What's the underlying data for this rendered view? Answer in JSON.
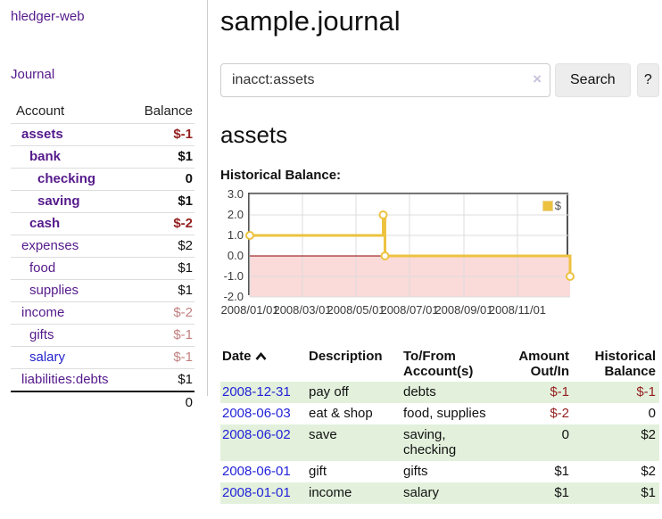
{
  "app": {
    "brand": "hledger-web",
    "nav_journal": "Journal"
  },
  "sidebar": {
    "header": {
      "account": "Account",
      "balance": "Balance"
    },
    "accounts": [
      {
        "name": "assets",
        "balance": "$-1",
        "level": 1,
        "bold": true,
        "balance_style": "neg-strong"
      },
      {
        "name": "bank",
        "balance": "$1",
        "level": 2,
        "bold": true,
        "balance_style": "pos"
      },
      {
        "name": "checking",
        "balance": "0",
        "level": 3,
        "bold": true,
        "balance_style": "pos"
      },
      {
        "name": "saving",
        "balance": "$1",
        "level": 3,
        "bold": true,
        "balance_style": "pos"
      },
      {
        "name": "cash",
        "balance": "$-2",
        "level": 2,
        "bold": true,
        "balance_style": "neg-strong"
      },
      {
        "name": "expenses",
        "balance": "$2",
        "level": 1,
        "bold": false,
        "balance_style": "pos"
      },
      {
        "name": "food",
        "balance": "$1",
        "level": 2,
        "bold": false,
        "balance_style": "pos"
      },
      {
        "name": "supplies",
        "balance": "$1",
        "level": 2,
        "bold": false,
        "balance_style": "pos"
      },
      {
        "name": "income",
        "balance": "$-2",
        "level": 1,
        "bold": false,
        "balance_style": "neg-muted"
      },
      {
        "name": "gifts",
        "balance": "$-1",
        "level": 2,
        "bold": false,
        "balance_style": "neg-muted"
      },
      {
        "name": "salary",
        "balance": "$-1",
        "level": 2,
        "bold": false,
        "balance_style": "neg-muted",
        "link_color": "blue"
      },
      {
        "name": "liabilities:debts",
        "balance": "$1",
        "level": 1,
        "bold": false,
        "balance_style": "pos"
      }
    ],
    "total": "0"
  },
  "header": {
    "title": "sample.journal"
  },
  "search": {
    "value": "inacct:assets",
    "clear_icon": "×",
    "button": "Search",
    "help_button": "?"
  },
  "account_page": {
    "heading": "assets",
    "chart_label": "Historical Balance:"
  },
  "chart_data": {
    "type": "line",
    "title": "Historical Balance",
    "step": true,
    "legend": [
      {
        "label": "$",
        "color": "#edc240"
      }
    ],
    "legend_position": "top-right",
    "grid": true,
    "xlim_dates": [
      "2008-01-01",
      "2008-12-31"
    ],
    "ylim": [
      -2.0,
      3.0
    ],
    "y_ticks": [
      3.0,
      2.0,
      1.0,
      0.0,
      -1.0,
      -2.0
    ],
    "x_ticks": [
      "2008/01/01",
      "2008/03/01",
      "2008/05/01",
      "2008/07/01",
      "2008/09/01",
      "2008/11/01"
    ],
    "points": [
      {
        "date": "2008-01-01",
        "value": 1
      },
      {
        "date": "2008-06-01",
        "value": 2
      },
      {
        "date": "2008-06-03",
        "value": 0
      },
      {
        "date": "2008-12-31",
        "value": -1
      }
    ],
    "series_color": "#edc240",
    "marker_fill": "#ffffff",
    "negative_region_color": "#fbdada",
    "zero_line_color": "#8b0000",
    "gridline_color": "#dcdcdc",
    "border_color": "#545454"
  },
  "register": {
    "columns": {
      "date": "Date",
      "description": "Description",
      "accounts": "To/From Account(s)",
      "amount": "Amount Out/In",
      "balance": "Historical Balance"
    },
    "rows": [
      {
        "date": "2008-12-31",
        "description": "pay off",
        "accounts": "debts",
        "amount": "$-1",
        "amount_neg": true,
        "balance": "$-1",
        "balance_neg": true
      },
      {
        "date": "2008-06-03",
        "description": "eat & shop",
        "accounts": "food, supplies",
        "amount": "$-2",
        "amount_neg": true,
        "balance": "0",
        "balance_neg": false
      },
      {
        "date": "2008-06-02",
        "description": "save",
        "accounts": "saving, checking",
        "amount": "0",
        "amount_neg": false,
        "balance": "$2",
        "balance_neg": false
      },
      {
        "date": "2008-06-01",
        "description": "gift",
        "accounts": "gifts",
        "amount": "$1",
        "amount_neg": false,
        "balance": "$2",
        "balance_neg": false
      },
      {
        "date": "2008-01-01",
        "description": "income",
        "accounts": "salary",
        "amount": "$1",
        "amount_neg": false,
        "balance": "$1",
        "balance_neg": false
      }
    ]
  }
}
